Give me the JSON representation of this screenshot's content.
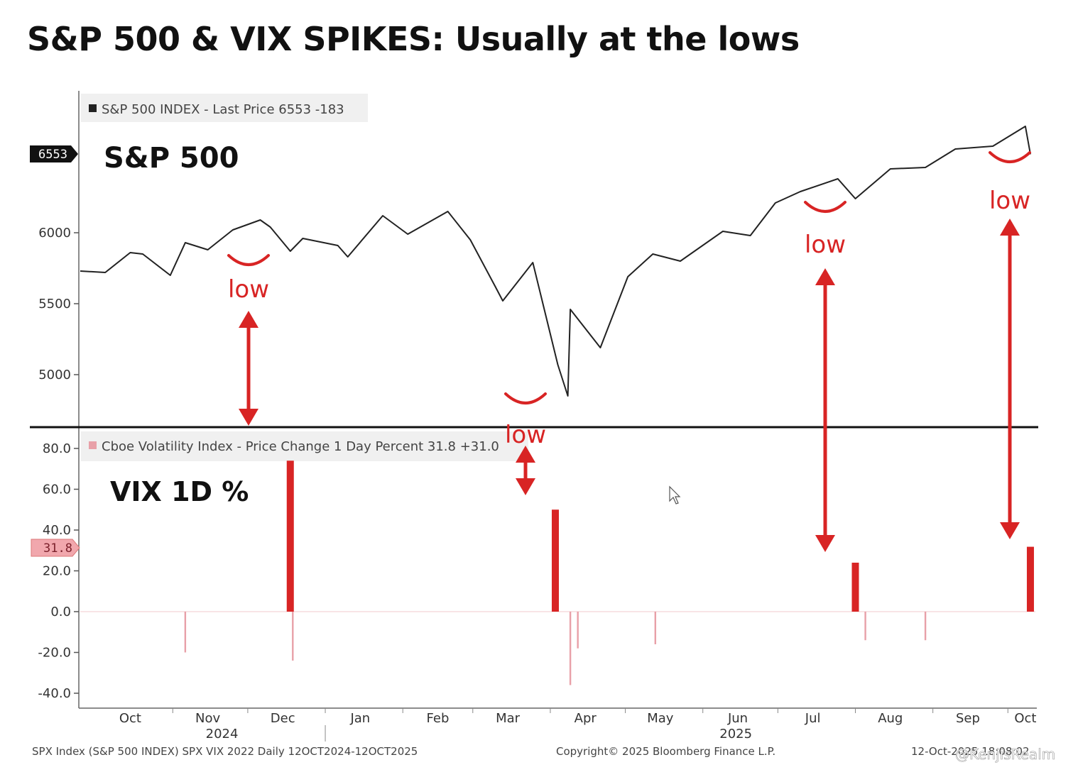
{
  "title": "S&P 500 & VIX SPIKES: Usually at the lows",
  "footer": {
    "left": "SPX Index (S&P 500 INDEX) SPX VIX 2022 Daily 12OCT2024-12OCT2025",
    "center": "Copyright© 2025 Bloomberg Finance L.P.",
    "right": "12-Oct-2025 18:08:02",
    "watermark": "@KenjisRealm"
  },
  "colors": {
    "spx": "#222222",
    "vix": "#e8a0a8",
    "accent": "#d82424",
    "badge_vix": "#f1a7ad"
  },
  "chart_data": [
    {
      "type": "line",
      "panel": "top",
      "panel_label": "S&P 500",
      "legend": "S&P 500 INDEX - Last Price 6553 -183",
      "last_price_badge": "6553",
      "ylim": [
        4650,
        6950
      ],
      "yticks": [
        5000,
        5500,
        6000
      ],
      "ytick_labels": [
        "5000",
        "5500",
        "6000"
      ],
      "x_range": [
        "2024-09-25",
        "2025-10-12"
      ],
      "series": [
        {
          "x": [
            "2024-09-25",
            "2024-10-05",
            "2024-10-15",
            "2024-10-20",
            "2024-10-31",
            "2024-11-06",
            "2024-11-15",
            "2024-11-25",
            "2024-12-06",
            "2024-12-10",
            "2024-12-18",
            "2024-12-23",
            "2025-01-06",
            "2025-01-10",
            "2025-01-24",
            "2025-02-03",
            "2025-02-19",
            "2025-02-28",
            "2025-03-10",
            "2025-03-13",
            "2025-03-25",
            "2025-04-04",
            "2025-04-08",
            "2025-04-09",
            "2025-04-21",
            "2025-05-02",
            "2025-05-12",
            "2025-05-23",
            "2025-06-09",
            "2025-06-20",
            "2025-06-30",
            "2025-07-10",
            "2025-07-25",
            "2025-08-01",
            "2025-08-15",
            "2025-08-29",
            "2025-09-10",
            "2025-09-25",
            "2025-10-08",
            "2025-10-10"
          ],
          "y": [
            5730,
            5720,
            5860,
            5850,
            5700,
            5930,
            5880,
            6020,
            6090,
            6040,
            5870,
            5960,
            5910,
            5830,
            6120,
            5990,
            6150,
            5950,
            5620,
            5520,
            5790,
            5070,
            4850,
            5460,
            5190,
            5690,
            5850,
            5800,
            6010,
            5980,
            6210,
            6290,
            6380,
            6240,
            6450,
            6460,
            6590,
            6610,
            6750,
            6553
          ]
        }
      ]
    },
    {
      "type": "bar",
      "panel": "bottom",
      "panel_label": "VIX 1D %",
      "legend": "Cboe Volatility Index - Price Change 1 Day Percent 31.8 +31.0",
      "last_value_badge": "31.8",
      "ylim": [
        -40,
        80
      ],
      "yticks": [
        -40,
        -20,
        0,
        20,
        40,
        60,
        80
      ],
      "ytick_labels": [
        "-40.0",
        "-20.0",
        "0.0",
        "20.0",
        "40.0",
        "60.0",
        "80.0"
      ],
      "highlighted_spikes": [
        {
          "date": "2024-12-18",
          "value": 74
        },
        {
          "date": "2025-04-03",
          "value": 50
        },
        {
          "date": "2025-08-01",
          "value": 24
        },
        {
          "date": "2025-10-10",
          "value": 31.8
        }
      ],
      "notable_drops": [
        {
          "date": "2024-11-06",
          "value": -20
        },
        {
          "date": "2024-12-19",
          "value": -24
        },
        {
          "date": "2025-04-09",
          "value": -36
        },
        {
          "date": "2025-04-12",
          "value": -18
        },
        {
          "date": "2025-05-13",
          "value": -16
        },
        {
          "date": "2025-08-05",
          "value": -14
        },
        {
          "date": "2025-08-29",
          "value": -14
        }
      ]
    }
  ],
  "x_axis": {
    "months": [
      "Oct",
      "Nov",
      "Dec",
      "Jan",
      "Feb",
      "Mar",
      "Apr",
      "May",
      "Jun",
      "Jul",
      "Aug",
      "Sep",
      "Oct"
    ],
    "years": [
      "2024",
      "2025"
    ]
  },
  "annotations": [
    {
      "label": "low",
      "date": "2024-12-18"
    },
    {
      "label": "low",
      "date": "2025-04-08"
    },
    {
      "label": "low",
      "date": "2025-08-01"
    },
    {
      "label": "low",
      "date": "2025-10-10"
    }
  ]
}
